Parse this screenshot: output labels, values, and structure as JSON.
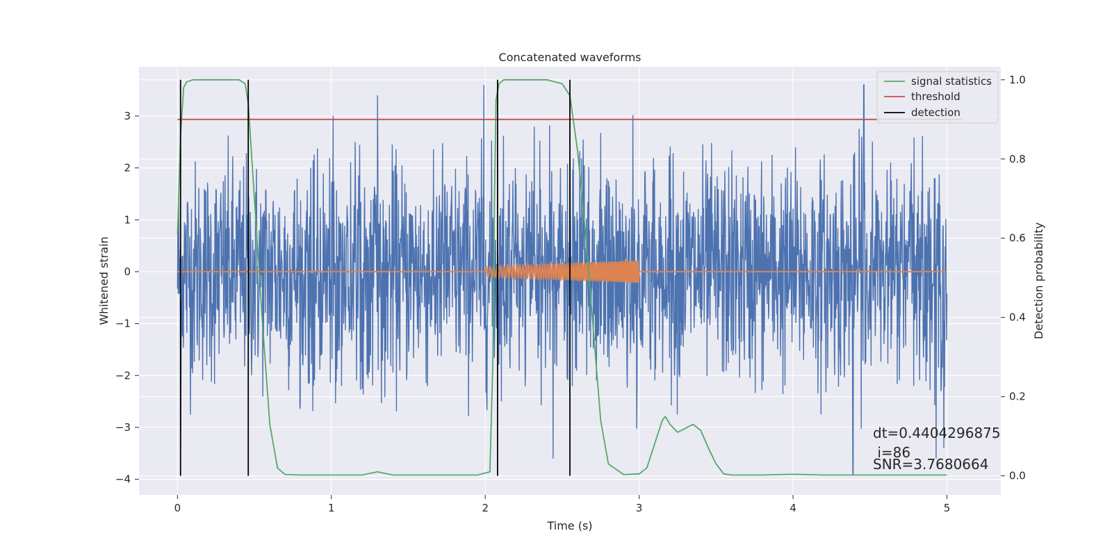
{
  "chart_data": {
    "type": "line",
    "title": "Concatenated waveforms",
    "xlabel": "Time (s)",
    "ylabel": "Whitened strain",
    "y2label": "Detection probability",
    "xlim": [
      -0.25,
      5.35
    ],
    "ylim": [
      -4.3,
      3.95
    ],
    "y2lim": [
      -0.048,
      1.033
    ],
    "xticks": [
      0,
      1,
      2,
      3,
      4,
      5
    ],
    "yticks": [
      -4,
      -3,
      -2,
      -1,
      0,
      1,
      2,
      3
    ],
    "y2ticks": [
      0.0,
      0.2,
      0.4,
      0.6,
      0.8,
      1.0
    ],
    "y2tick_labels": [
      "0.0",
      "0.2",
      "0.4",
      "0.6",
      "0.8",
      "1.0"
    ],
    "ytick_labels": [
      "−4",
      "−3",
      "−2",
      "−1",
      "0",
      "1",
      "2",
      "3"
    ],
    "grid": true,
    "legend_position": "top-right",
    "legend": [
      "signal statistics",
      "threshold",
      "detection"
    ],
    "colors": {
      "strain": "#4c72b0",
      "template": "#dd8452",
      "statistics": "#55a868",
      "threshold": "#c44e52",
      "detection": "#000000",
      "background": "#eaeaf2",
      "grid": "#ffffff"
    },
    "series": [
      {
        "name": "whitened strain",
        "axis": "left",
        "x_range": [
          0,
          5
        ],
        "approx_envelope": [
          -3.6,
          3.6
        ],
        "note_peaks": [
          {
            "x": 0.02,
            "y": -3.4
          },
          {
            "x": 1.3,
            "y": 3.4
          },
          {
            "x": 1.99,
            "y": 3.6
          },
          {
            "x": 2.44,
            "y": -3.6
          },
          {
            "x": 4.39,
            "y": -3.9
          },
          {
            "x": 4.46,
            "y": 3.6
          },
          {
            "x": 4.93,
            "y": -3.6
          },
          {
            "x": 4.98,
            "y": -3.4
          }
        ]
      },
      {
        "name": "injected waveform",
        "axis": "left",
        "x": [
          0,
          2.0,
          2.0,
          3.0,
          3.0,
          5.0
        ],
        "chirp_start": 2.0,
        "chirp_end": 3.0,
        "chirp_amplitude_start": 0.1,
        "chirp_amplitude_end": 0.22
      },
      {
        "name": "signal statistics",
        "axis": "right",
        "x": [
          0.0,
          0.02,
          0.04,
          0.06,
          0.1,
          0.2,
          0.3,
          0.4,
          0.44,
          0.46,
          0.5,
          0.55,
          0.6,
          0.65,
          0.7,
          0.8,
          1.0,
          1.2,
          1.3,
          1.4,
          1.6,
          1.8,
          1.95,
          2.03,
          2.05,
          2.06,
          2.07,
          2.09,
          2.12,
          2.2,
          2.3,
          2.4,
          2.5,
          2.55,
          2.6,
          2.65,
          2.7,
          2.75,
          2.8,
          2.9,
          3.0,
          3.05,
          3.1,
          3.15,
          3.17,
          3.2,
          3.25,
          3.3,
          3.35,
          3.4,
          3.45,
          3.5,
          3.55,
          3.6,
          3.8,
          4.0,
          4.2,
          4.5,
          5.0
        ],
        "values": [
          0.61,
          0.86,
          0.98,
          0.995,
          1.0,
          1.0,
          1.0,
          1.0,
          0.99,
          0.94,
          0.7,
          0.4,
          0.13,
          0.02,
          0.003,
          0.002,
          0.002,
          0.002,
          0.01,
          0.002,
          0.002,
          0.002,
          0.002,
          0.01,
          0.3,
          0.7,
          0.95,
          0.99,
          1.0,
          1.0,
          1.0,
          1.0,
          0.99,
          0.96,
          0.82,
          0.62,
          0.38,
          0.14,
          0.03,
          0.003,
          0.005,
          0.02,
          0.08,
          0.14,
          0.15,
          0.13,
          0.11,
          0.12,
          0.13,
          0.115,
          0.07,
          0.03,
          0.005,
          0.002,
          0.002,
          0.004,
          0.002,
          0.002,
          0.002
        ]
      },
      {
        "name": "threshold",
        "axis": "right",
        "x": [
          0.0,
          5.1
        ],
        "values": [
          0.9,
          0.9
        ]
      },
      {
        "name": "detection",
        "axis": "right",
        "type": "vlines",
        "x": [
          0.02,
          0.46,
          2.08,
          2.55
        ],
        "ymin": 0.0,
        "ymax": 1.0
      }
    ],
    "annotations": [
      "dt=0.4404296875",
      " i=86",
      "SNR=3.7680664"
    ]
  }
}
